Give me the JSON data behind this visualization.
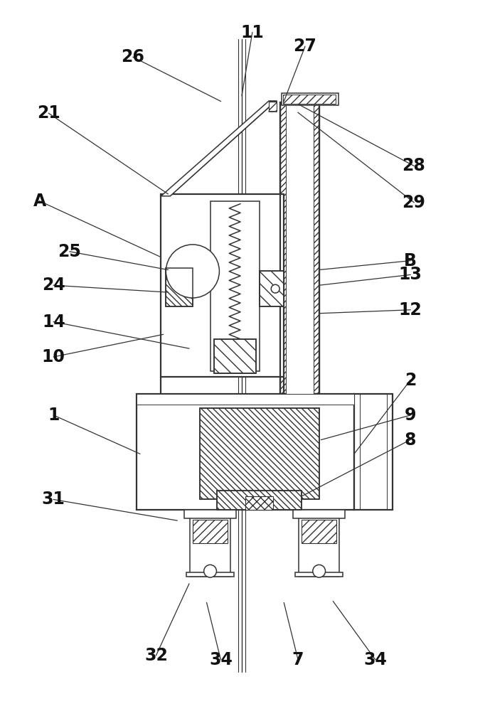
{
  "bg_color": "#ffffff",
  "line_color": "#333333",
  "label_color": "#111111",
  "fig_width": 6.82,
  "fig_height": 10.0,
  "lw_main": 1.1,
  "lw_thick": 1.6,
  "label_fs": 17
}
